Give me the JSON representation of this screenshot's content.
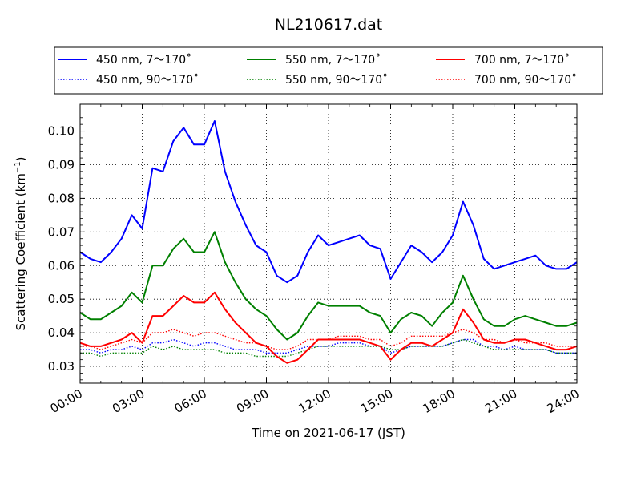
{
  "chart_data": {
    "type": "line",
    "title": "NL210617.dat",
    "xlabel": "Time on 2021-06-17 (JST)",
    "ylabel": "Scattering Coefficient (km",
    "ylabel_sup": "−1",
    "ylabel_tail": ")",
    "xlim": [
      0,
      24
    ],
    "ylim": [
      0.025,
      0.108
    ],
    "x_ticks": [
      0,
      3,
      6,
      9,
      12,
      15,
      18,
      21,
      24
    ],
    "x_tick_labels": [
      "00:00",
      "03:00",
      "06:00",
      "09:00",
      "12:00",
      "15:00",
      "18:00",
      "21:00",
      "24:00"
    ],
    "y_ticks": [
      0.03,
      0.04,
      0.05,
      0.06,
      0.07,
      0.08,
      0.09,
      0.1
    ],
    "y_tick_labels": [
      "0.03",
      "0.04",
      "0.05",
      "0.06",
      "0.07",
      "0.08",
      "0.09",
      "0.10"
    ],
    "grid": true,
    "legend_position": "top, above plot",
    "series": [
      {
        "name": "450 nm, 7～170˚",
        "color": "#0000ff",
        "style": "solid",
        "x": [
          0,
          0.5,
          1,
          1.5,
          2,
          2.5,
          3,
          3.5,
          4,
          4.5,
          5,
          5.5,
          6,
          6.5,
          7,
          7.5,
          8,
          8.5,
          9,
          9.5,
          10,
          10.5,
          11,
          11.5,
          12,
          12.5,
          13,
          13.5,
          14,
          14.5,
          15,
          15.5,
          16,
          16.5,
          17,
          17.5,
          18,
          18.5,
          19,
          19.5,
          20,
          20.5,
          21,
          21.5,
          22,
          22.5,
          23,
          23.5,
          24
        ],
        "y": [
          0.064,
          0.062,
          0.061,
          0.064,
          0.068,
          0.075,
          0.071,
          0.089,
          0.088,
          0.097,
          0.101,
          0.096,
          0.096,
          0.103,
          0.088,
          0.079,
          0.072,
          0.066,
          0.064,
          0.057,
          0.055,
          0.057,
          0.064,
          0.069,
          0.066,
          0.067,
          0.068,
          0.069,
          0.066,
          0.065,
          0.056,
          0.061,
          0.066,
          0.064,
          0.061,
          0.064,
          0.069,
          0.079,
          0.072,
          0.062,
          0.059,
          0.06,
          0.061,
          0.062,
          0.063,
          0.06,
          0.059,
          0.059,
          0.061
        ]
      },
      {
        "name": "450 nm, 90～170˚",
        "color": "#0000ff",
        "style": "dotted",
        "x": [
          0,
          0.5,
          1,
          1.5,
          2,
          2.5,
          3,
          3.5,
          4,
          4.5,
          5,
          5.5,
          6,
          6.5,
          7,
          7.5,
          8,
          8.5,
          9,
          9.5,
          10,
          10.5,
          11,
          11.5,
          12,
          12.5,
          13,
          13.5,
          14,
          14.5,
          15,
          15.5,
          16,
          16.5,
          17,
          17.5,
          18,
          18.5,
          19,
          19.5,
          20,
          20.5,
          21,
          21.5,
          22,
          22.5,
          23,
          23.5,
          24
        ],
        "y": [
          0.035,
          0.035,
          0.034,
          0.035,
          0.035,
          0.036,
          0.035,
          0.037,
          0.037,
          0.038,
          0.037,
          0.036,
          0.037,
          0.037,
          0.036,
          0.035,
          0.035,
          0.035,
          0.034,
          0.034,
          0.034,
          0.035,
          0.036,
          0.036,
          0.036,
          0.037,
          0.037,
          0.037,
          0.036,
          0.036,
          0.034,
          0.035,
          0.036,
          0.036,
          0.036,
          0.036,
          0.037,
          0.038,
          0.038,
          0.036,
          0.036,
          0.035,
          0.036,
          0.035,
          0.035,
          0.035,
          0.034,
          0.034,
          0.034
        ]
      },
      {
        "name": "550 nm, 7～170˚",
        "color": "#008000",
        "style": "solid",
        "x": [
          0,
          0.5,
          1,
          1.5,
          2,
          2.5,
          3,
          3.5,
          4,
          4.5,
          5,
          5.5,
          6,
          6.5,
          7,
          7.5,
          8,
          8.5,
          9,
          9.5,
          10,
          10.5,
          11,
          11.5,
          12,
          12.5,
          13,
          13.5,
          14,
          14.5,
          15,
          15.5,
          16,
          16.5,
          17,
          17.5,
          18,
          18.5,
          19,
          19.5,
          20,
          20.5,
          21,
          21.5,
          22,
          22.5,
          23,
          23.5,
          24
        ],
        "y": [
          0.046,
          0.044,
          0.044,
          0.046,
          0.048,
          0.052,
          0.049,
          0.06,
          0.06,
          0.065,
          0.068,
          0.064,
          0.064,
          0.07,
          0.061,
          0.055,
          0.05,
          0.047,
          0.045,
          0.041,
          0.038,
          0.04,
          0.045,
          0.049,
          0.048,
          0.048,
          0.048,
          0.048,
          0.046,
          0.045,
          0.04,
          0.044,
          0.046,
          0.045,
          0.042,
          0.046,
          0.049,
          0.057,
          0.05,
          0.044,
          0.042,
          0.042,
          0.044,
          0.045,
          0.044,
          0.043,
          0.042,
          0.042,
          0.043
        ]
      },
      {
        "name": "550 nm, 90～170˚",
        "color": "#008000",
        "style": "dotted",
        "x": [
          0,
          0.5,
          1,
          1.5,
          2,
          2.5,
          3,
          3.5,
          4,
          4.5,
          5,
          5.5,
          6,
          6.5,
          7,
          7.5,
          8,
          8.5,
          9,
          9.5,
          10,
          10.5,
          11,
          11.5,
          12,
          12.5,
          13,
          13.5,
          14,
          14.5,
          15,
          15.5,
          16,
          16.5,
          17,
          17.5,
          18,
          18.5,
          19,
          19.5,
          20,
          20.5,
          21,
          21.5,
          22,
          22.5,
          23,
          23.5,
          24
        ],
        "y": [
          0.034,
          0.034,
          0.033,
          0.034,
          0.034,
          0.034,
          0.034,
          0.036,
          0.035,
          0.036,
          0.035,
          0.035,
          0.035,
          0.035,
          0.034,
          0.034,
          0.034,
          0.033,
          0.033,
          0.033,
          0.033,
          0.034,
          0.035,
          0.036,
          0.036,
          0.036,
          0.036,
          0.036,
          0.036,
          0.036,
          0.035,
          0.035,
          0.036,
          0.036,
          0.036,
          0.036,
          0.037,
          0.038,
          0.037,
          0.036,
          0.035,
          0.035,
          0.035,
          0.035,
          0.035,
          0.035,
          0.034,
          0.034,
          0.034
        ]
      },
      {
        "name": "700 nm, 7～170˚",
        "color": "#ff0000",
        "style": "solid",
        "x": [
          0,
          0.5,
          1,
          1.5,
          2,
          2.5,
          3,
          3.5,
          4,
          4.5,
          5,
          5.5,
          6,
          6.5,
          7,
          7.5,
          8,
          8.5,
          9,
          9.5,
          10,
          10.5,
          11,
          11.5,
          12,
          12.5,
          13,
          13.5,
          14,
          14.5,
          15,
          15.5,
          16,
          16.5,
          17,
          17.5,
          18,
          18.5,
          19,
          19.5,
          20,
          20.5,
          21,
          21.5,
          22,
          22.5,
          23,
          23.5,
          24
        ],
        "y": [
          0.037,
          0.036,
          0.036,
          0.037,
          0.038,
          0.04,
          0.037,
          0.045,
          0.045,
          0.048,
          0.051,
          0.049,
          0.049,
          0.052,
          0.047,
          0.043,
          0.04,
          0.037,
          0.036,
          0.033,
          0.031,
          0.032,
          0.035,
          0.038,
          0.038,
          0.038,
          0.038,
          0.038,
          0.037,
          0.036,
          0.032,
          0.035,
          0.037,
          0.037,
          0.036,
          0.038,
          0.04,
          0.047,
          0.043,
          0.038,
          0.037,
          0.037,
          0.038,
          0.038,
          0.037,
          0.036,
          0.035,
          0.035,
          0.036
        ]
      },
      {
        "name": "700 nm, 90～170˚",
        "color": "#ff0000",
        "style": "dotted",
        "x": [
          0,
          0.5,
          1,
          1.5,
          2,
          2.5,
          3,
          3.5,
          4,
          4.5,
          5,
          5.5,
          6,
          6.5,
          7,
          7.5,
          8,
          8.5,
          9,
          9.5,
          10,
          10.5,
          11,
          11.5,
          12,
          12.5,
          13,
          13.5,
          14,
          14.5,
          15,
          15.5,
          16,
          16.5,
          17,
          17.5,
          18,
          18.5,
          19,
          19.5,
          20,
          20.5,
          21,
          21.5,
          22,
          22.5,
          23,
          23.5,
          24
        ],
        "y": [
          0.036,
          0.036,
          0.035,
          0.036,
          0.037,
          0.038,
          0.037,
          0.04,
          0.04,
          0.041,
          0.04,
          0.039,
          0.04,
          0.04,
          0.039,
          0.038,
          0.037,
          0.037,
          0.036,
          0.035,
          0.035,
          0.036,
          0.038,
          0.038,
          0.038,
          0.039,
          0.039,
          0.039,
          0.038,
          0.038,
          0.036,
          0.037,
          0.039,
          0.039,
          0.039,
          0.039,
          0.04,
          0.041,
          0.04,
          0.038,
          0.038,
          0.037,
          0.038,
          0.037,
          0.037,
          0.037,
          0.036,
          0.036,
          0.036
        ]
      }
    ]
  }
}
